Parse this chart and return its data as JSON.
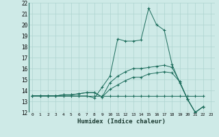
{
  "xlabel": "Humidex (Indice chaleur)",
  "bg_color": "#ceeae7",
  "grid_color": "#aed4d0",
  "line_color": "#1a6b5a",
  "xlim": [
    -0.5,
    23.5
  ],
  "ylim": [
    12,
    22
  ],
  "x_ticks": [
    0,
    1,
    2,
    3,
    4,
    5,
    6,
    7,
    8,
    9,
    10,
    11,
    12,
    13,
    14,
    15,
    16,
    17,
    18,
    19,
    20,
    21,
    22,
    23
  ],
  "y_ticks": [
    12,
    13,
    14,
    15,
    16,
    17,
    18,
    19,
    20,
    21,
    22
  ],
  "series": [
    {
      "x": [
        0,
        1,
        2,
        3,
        4,
        5,
        6,
        7,
        8,
        9,
        10,
        11,
        12,
        13,
        14,
        15,
        16,
        17,
        18,
        19,
        20,
        21,
        22
      ],
      "y": [
        13.5,
        13.5,
        13.5,
        13.5,
        13.5,
        13.5,
        13.5,
        13.5,
        13.3,
        14.3,
        15.3,
        18.7,
        18.5,
        18.5,
        18.6,
        21.5,
        20.0,
        19.5,
        16.4,
        14.7,
        13.2,
        12.0,
        12.5
      ]
    },
    {
      "x": [
        0,
        1,
        2,
        3,
        4,
        5,
        6,
        7,
        8,
        9,
        10,
        11,
        12,
        13,
        14,
        15,
        16,
        17,
        18,
        19,
        20,
        21,
        22
      ],
      "y": [
        13.5,
        13.5,
        13.5,
        13.5,
        13.6,
        13.6,
        13.7,
        13.8,
        13.8,
        13.4,
        14.7,
        15.3,
        15.7,
        16.0,
        16.0,
        16.1,
        16.2,
        16.3,
        16.1,
        14.8,
        13.2,
        12.0,
        12.5
      ]
    },
    {
      "x": [
        0,
        1,
        2,
        3,
        4,
        5,
        6,
        7,
        8,
        9,
        10,
        11,
        12,
        13,
        14,
        15,
        16,
        17,
        18,
        19,
        20,
        21,
        22
      ],
      "y": [
        13.5,
        13.5,
        13.5,
        13.5,
        13.6,
        13.6,
        13.7,
        13.8,
        13.8,
        13.4,
        14.1,
        14.5,
        14.9,
        15.2,
        15.2,
        15.5,
        15.6,
        15.7,
        15.6,
        14.8,
        13.2,
        12.0,
        12.5
      ]
    },
    {
      "x": [
        0,
        1,
        2,
        3,
        4,
        5,
        6,
        7,
        8,
        9,
        10,
        11,
        12,
        13,
        14,
        15,
        16,
        17,
        18,
        19,
        20,
        21,
        22
      ],
      "y": [
        13.5,
        13.5,
        13.5,
        13.5,
        13.5,
        13.5,
        13.5,
        13.5,
        13.5,
        13.5,
        13.5,
        13.5,
        13.5,
        13.5,
        13.5,
        13.5,
        13.5,
        13.5,
        13.5,
        13.5,
        13.5,
        13.5,
        13.5
      ]
    }
  ]
}
